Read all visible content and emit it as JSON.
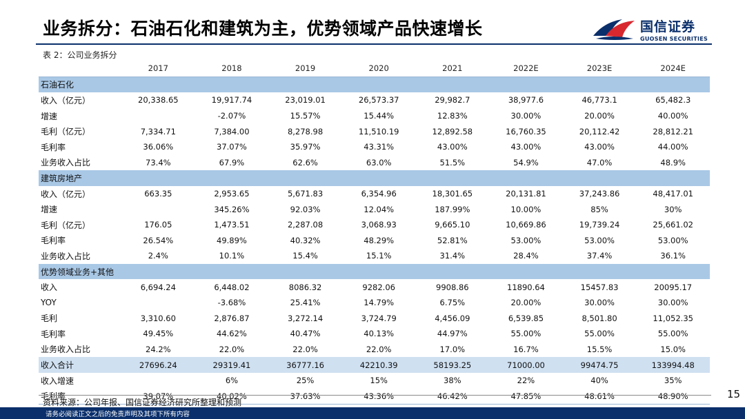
{
  "slide": {
    "title": "业务拆分：石油石化和建筑为主，优势领域产品快速增长",
    "page_number": "15"
  },
  "logo": {
    "name_cn": "国信证券",
    "name_en": "GUOSEN SECURITIES"
  },
  "table": {
    "caption": "表 2：公司业务拆分",
    "columns": [
      "",
      "2017",
      "2018",
      "2019",
      "2020",
      "2021",
      "2022E",
      "2023E",
      "2024E"
    ],
    "rows": [
      {
        "type": "section",
        "label": "石油石化"
      },
      {
        "type": "data",
        "label": "收入（亿元）",
        "values": [
          "20,338.65",
          "19,917.74",
          "23,019.01",
          "26,573.37",
          "29,982.7",
          "38,977.6",
          "46,773.1",
          "65,482.3"
        ]
      },
      {
        "type": "data",
        "label": "增速",
        "values": [
          "",
          "-2.07%",
          "15.57%",
          "15.44%",
          "12.83%",
          "30.00%",
          "20.00%",
          "40.00%"
        ]
      },
      {
        "type": "data",
        "label": "毛利（亿元）",
        "values": [
          "7,334.71",
          "7,384.00",
          "8,278.98",
          "11,510.19",
          "12,892.58",
          "16,760.35",
          "20,112.42",
          "28,812.21"
        ]
      },
      {
        "type": "data",
        "label": "毛利率",
        "values": [
          "36.06%",
          "37.07%",
          "35.97%",
          "43.31%",
          "43.00%",
          "43.00%",
          "43.00%",
          "44.00%"
        ]
      },
      {
        "type": "data",
        "label": "业务收入占比",
        "values": [
          "73.4%",
          "67.9%",
          "62.6%",
          "63.0%",
          "51.5%",
          "54.9%",
          "47.0%",
          "48.9%"
        ]
      },
      {
        "type": "section",
        "label": "建筑房地产"
      },
      {
        "type": "data",
        "label": "收入（亿元）",
        "values": [
          "663.35",
          "2,953.65",
          "5,671.83",
          "6,354.96",
          "18,301.65",
          "20,131.81",
          "37,243.86",
          "48,417.01"
        ]
      },
      {
        "type": "data",
        "label": "增速",
        "values": [
          "",
          "345.26%",
          "92.03%",
          "12.04%",
          "187.99%",
          "10.00%",
          "85%",
          "30%"
        ]
      },
      {
        "type": "data",
        "label": "毛利（亿元）",
        "values": [
          "176.05",
          "1,473.51",
          "2,287.08",
          "3,068.93",
          "9,665.10",
          "10,669.86",
          "19,739.24",
          "25,661.02"
        ]
      },
      {
        "type": "data",
        "label": "毛利率",
        "values": [
          "26.54%",
          "49.89%",
          "40.32%",
          "48.29%",
          "52.81%",
          "53.00%",
          "53.00%",
          "53.00%"
        ]
      },
      {
        "type": "data",
        "label": "业务收入占比",
        "values": [
          "2.4%",
          "10.1%",
          "15.4%",
          "15.1%",
          "31.4%",
          "28.4%",
          "37.4%",
          "36.1%"
        ]
      },
      {
        "type": "section",
        "label": "优势领域业务+其他"
      },
      {
        "type": "data",
        "label": "收入",
        "values": [
          "6,694.24",
          "6,448.02",
          "8086.32",
          "9282.06",
          "9908.86",
          "11890.64",
          "15457.83",
          "20095.17"
        ]
      },
      {
        "type": "data",
        "label": "YOY",
        "values": [
          "",
          "-3.68%",
          "25.41%",
          "14.79%",
          "6.75%",
          "20.00%",
          "30.00%",
          "30.00%"
        ]
      },
      {
        "type": "data",
        "label": "毛利",
        "values": [
          "3,310.60",
          "2,876.87",
          "3,272.14",
          "3,724.79",
          "4,456.09",
          "6,539.85",
          "8,501.80",
          "11,052.35"
        ]
      },
      {
        "type": "data",
        "label": "毛利率",
        "values": [
          "49.45%",
          "44.62%",
          "40.47%",
          "40.13%",
          "44.97%",
          "55.00%",
          "55.00%",
          "55.00%"
        ]
      },
      {
        "type": "data",
        "label": "业务收入占比",
        "values": [
          "24.2%",
          "22.0%",
          "22.0%",
          "22.0%",
          "17.0%",
          "16.7%",
          "15.5%",
          "15.0%"
        ]
      },
      {
        "type": "total",
        "label": "收入合计",
        "values": [
          "27696.24",
          "29319.41",
          "36777.16",
          "42210.39",
          "58193.25",
          "71000.00",
          "99474.75",
          "133994.48"
        ]
      },
      {
        "type": "data",
        "label": "收入增速",
        "values": [
          "",
          "6%",
          "25%",
          "15%",
          "38%",
          "22%",
          "40%",
          "35%"
        ]
      },
      {
        "type": "data",
        "label": "毛利率",
        "values": [
          "39.07%",
          "40.02%",
          "37.63%",
          "43.36%",
          "46.42%",
          "47.85%",
          "48.61%",
          "48.90%"
        ]
      }
    ]
  },
  "source": "资料来源：公司年报、国信证券经济研究所整理和预测",
  "footer": {
    "disclaimer": "请务必阅读正文之后的免责声明及其项下所有内容"
  },
  "colors": {
    "brand_navy": "#0a2f6b",
    "brand_red": "#d7282f",
    "section_fill": "#a9c8e6",
    "total_fill": "#cfe0f1"
  }
}
